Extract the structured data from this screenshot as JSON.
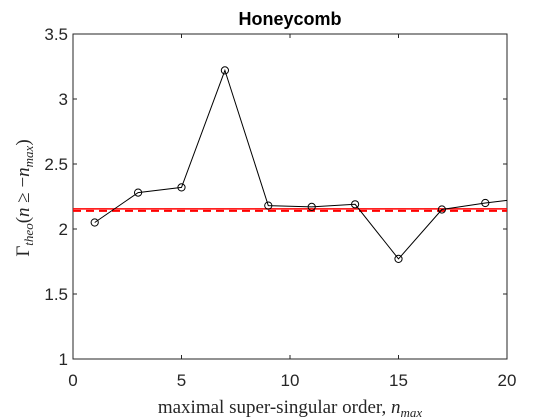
{
  "chart_data": {
    "type": "line",
    "title": "Honeycomb",
    "xlabel": "maximal super-singular order, n_max",
    "ylabel": "Γ_theo(n ≥ −n_max)",
    "xlim": [
      0,
      20
    ],
    "ylim": [
      1,
      3.5
    ],
    "xticks": [
      0,
      5,
      10,
      15,
      20
    ],
    "yticks": [
      1,
      1.5,
      2,
      2.5,
      3,
      3.5
    ],
    "xtick_labels": [
      "0",
      "5",
      "10",
      "15",
      "20"
    ],
    "ytick_labels": [
      "1",
      "1.5",
      "2",
      "2.5",
      "3",
      "3.5"
    ],
    "grid": false,
    "series": [
      {
        "x": [
          1,
          3,
          5,
          7,
          9,
          11,
          13,
          15,
          17,
          19,
          20
        ],
        "y": [
          2.05,
          2.28,
          2.32,
          3.22,
          2.18,
          2.17,
          2.19,
          1.77,
          2.15,
          2.2,
          2.22
        ],
        "markers": [
          true,
          true,
          true,
          true,
          true,
          true,
          true,
          true,
          true,
          true,
          false
        ],
        "color": "#000000",
        "marker": "circle"
      }
    ],
    "reference_lines": [
      {
        "y": 2.155,
        "color": "#ff0000",
        "style": "solid"
      },
      {
        "y": 2.155,
        "color": "#ff0000",
        "style": "dashed"
      }
    ]
  }
}
